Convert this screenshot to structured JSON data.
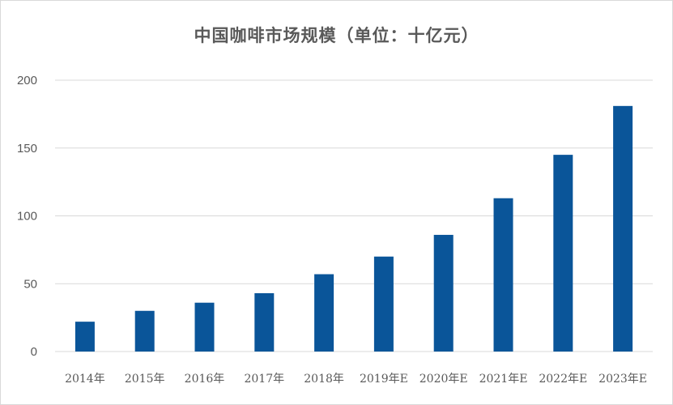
{
  "chart_data": {
    "type": "bar",
    "title": "中国咖啡市场规模（单位：十亿元）",
    "categories": [
      "2014年",
      "2015年",
      "2016年",
      "2017年",
      "2018年",
      "2019年E",
      "2020年E",
      "2021年E",
      "2022年E",
      "2023年E"
    ],
    "values": [
      22,
      30,
      36,
      43,
      57,
      70,
      86,
      113,
      145,
      181
    ],
    "yticks": [
      "0",
      "50",
      "100",
      "150",
      "200"
    ],
    "ylim": [
      0,
      200
    ],
    "grid": true,
    "legend": "none",
    "bar_color": "#0a5599",
    "grid_color": "#d9d9d9"
  }
}
